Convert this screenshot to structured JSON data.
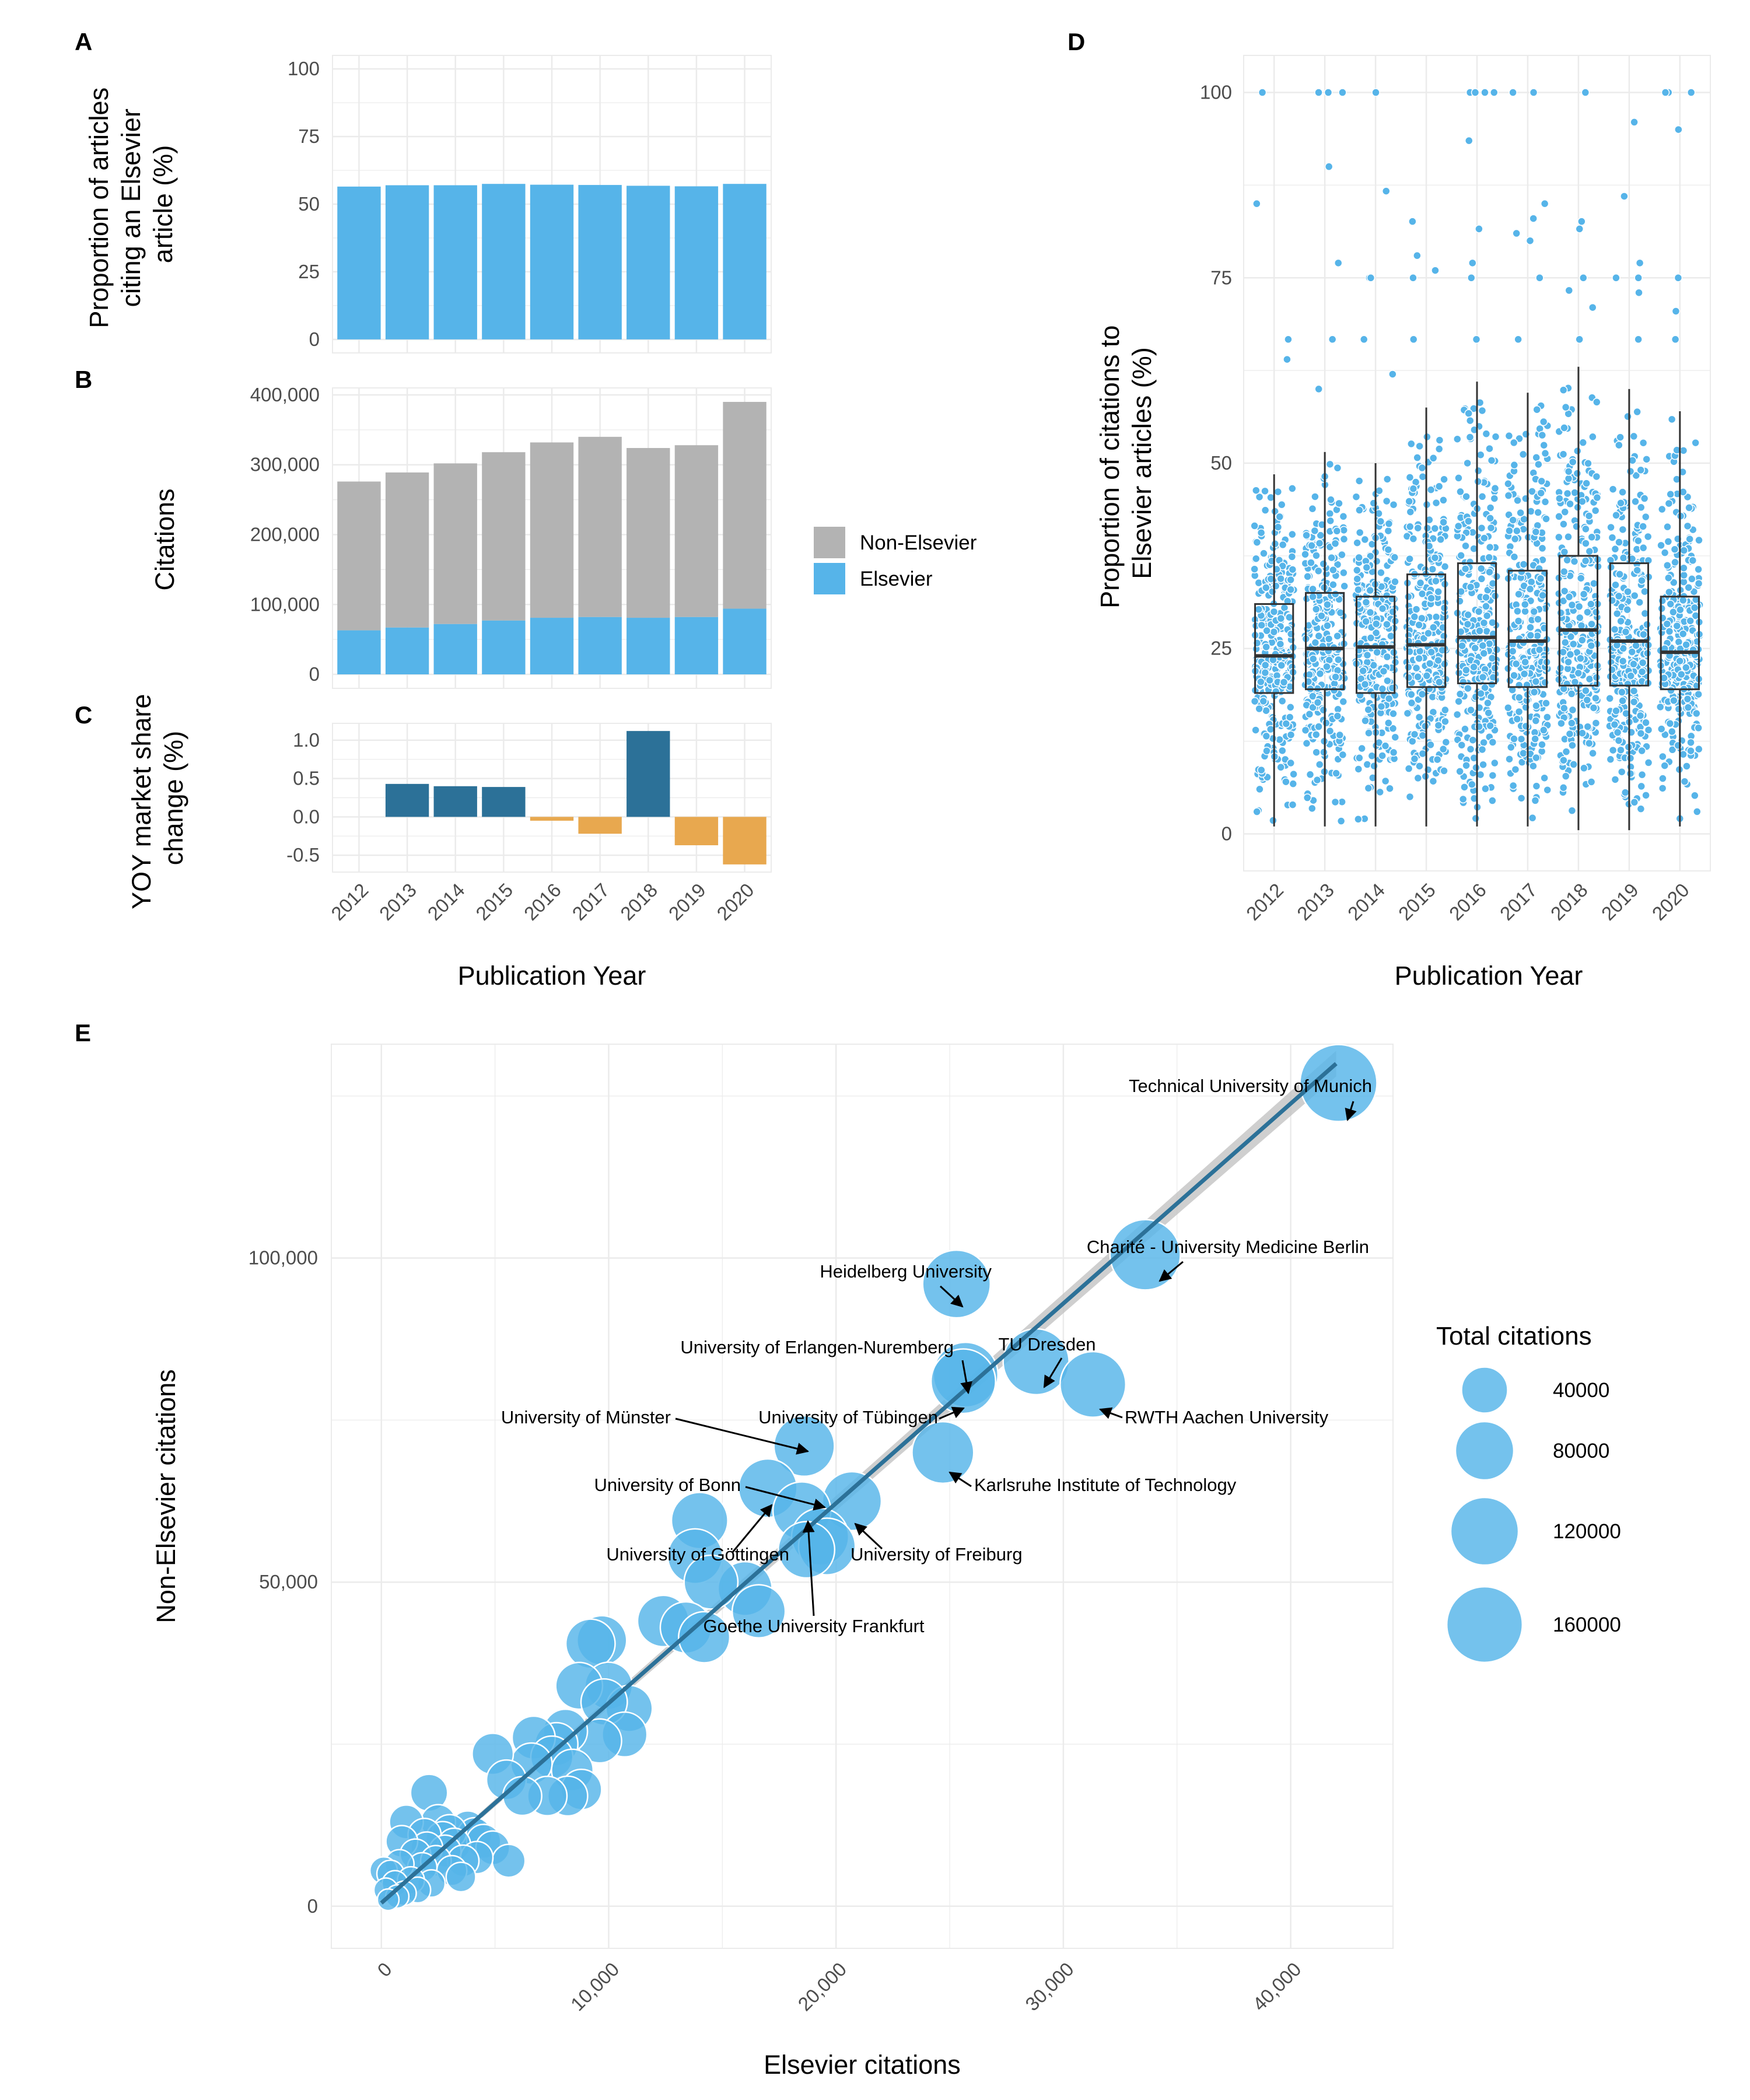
{
  "panel_letters": {
    "a": "A",
    "b": "B",
    "c": "C",
    "d": "D",
    "e": "E"
  },
  "colors": {
    "elsevier": "#56B4E9",
    "non_elsevier": "#B3B3B3",
    "positive_change": "#2C7198",
    "negative_change": "#E8A84F",
    "regression_line": "#2C7198",
    "confidence_band": "#BFBFBF",
    "grid": "#EBEBEB"
  },
  "chart_data": [
    {
      "id": "A",
      "type": "bar",
      "categories": [
        "2012",
        "2013",
        "2014",
        "2015",
        "2016",
        "2017",
        "2018",
        "2019",
        "2020"
      ],
      "values": [
        56.5,
        57.0,
        57.0,
        57.5,
        57.2,
        57.1,
        56.8,
        56.6,
        57.5
      ],
      "ylim": [
        0,
        100
      ],
      "yticks": [
        0,
        25,
        50,
        75,
        100
      ],
      "ytick_labels": [
        "0",
        "25",
        "50",
        "75",
        "100"
      ],
      "ylabel_lines": [
        "Proportion of articles",
        "citing an Elsevier",
        "article (%)"
      ],
      "grid": true
    },
    {
      "id": "B",
      "type": "bar",
      "stacked": true,
      "categories": [
        "2012",
        "2013",
        "2014",
        "2015",
        "2016",
        "2017",
        "2018",
        "2019",
        "2020"
      ],
      "series": [
        {
          "name": "Elsevier",
          "values": [
            63000,
            67000,
            72000,
            77000,
            81000,
            82000,
            81000,
            82000,
            94000
          ]
        },
        {
          "name": "Non-Elsevier",
          "values": [
            213000,
            222000,
            230000,
            241000,
            251000,
            258000,
            243000,
            246000,
            296000
          ]
        }
      ],
      "ylim": [
        0,
        400000
      ],
      "yticks": [
        0,
        100000,
        200000,
        300000,
        400000
      ],
      "ytick_labels": [
        "0",
        "100,000",
        "200,000",
        "300,000",
        "400,000"
      ],
      "ylabel": "Citations",
      "legend": {
        "position": "right",
        "entries": [
          "Non-Elsevier",
          "Elsevier"
        ]
      },
      "grid": true
    },
    {
      "id": "C",
      "type": "bar",
      "categories": [
        "2012",
        "2013",
        "2014",
        "2015",
        "2016",
        "2017",
        "2018",
        "2019",
        "2020"
      ],
      "values": [
        null,
        0.43,
        0.4,
        0.39,
        -0.05,
        -0.22,
        1.12,
        -0.37,
        -0.62
      ],
      "ylim": [
        -0.75,
        1.25
      ],
      "yticks": [
        -0.5,
        0.0,
        0.5,
        1.0
      ],
      "ytick_labels": [
        "-0.5",
        "0.0",
        "0.5",
        "1.0"
      ],
      "xtick_labels": [
        "2012",
        "2013",
        "2014",
        "2015",
        "2016",
        "2017",
        "2018",
        "2019",
        "2020"
      ],
      "ylabel_lines": [
        "YOY market share",
        "change (%)"
      ],
      "xlabel": "Publication Year",
      "grid": true
    },
    {
      "id": "D",
      "type": "box",
      "categories": [
        "2012",
        "2013",
        "2014",
        "2015",
        "2016",
        "2017",
        "2018",
        "2019",
        "2020"
      ],
      "boxes": [
        {
          "year": "2012",
          "q1": 19.0,
          "median": 24.0,
          "q3": 31.0,
          "whisker_low": 1.0,
          "whisker_high": 48.5
        },
        {
          "year": "2013",
          "q1": 19.5,
          "median": 25.0,
          "q3": 32.5,
          "whisker_low": 1.0,
          "whisker_high": 51.5
        },
        {
          "year": "2014",
          "q1": 19.0,
          "median": 25.2,
          "q3": 32.0,
          "whisker_low": 1.0,
          "whisker_high": 50.0
        },
        {
          "year": "2015",
          "q1": 19.8,
          "median": 25.5,
          "q3": 35.0,
          "whisker_low": 1.0,
          "whisker_high": 57.5
        },
        {
          "year": "2016",
          "q1": 20.3,
          "median": 26.5,
          "q3": 36.5,
          "whisker_low": 1.0,
          "whisker_high": 61.0
        },
        {
          "year": "2017",
          "q1": 19.8,
          "median": 26.0,
          "q3": 35.5,
          "whisker_low": 1.0,
          "whisker_high": 59.5
        },
        {
          "year": "2018",
          "q1": 20.0,
          "median": 27.5,
          "q3": 37.5,
          "whisker_low": 0.5,
          "whisker_high": 63.0
        },
        {
          "year": "2019",
          "q1": 20.0,
          "median": 26.0,
          "q3": 36.5,
          "whisker_low": 0.5,
          "whisker_high": 60.0
        },
        {
          "year": "2020",
          "q1": 19.5,
          "median": 24.5,
          "q3": 32.0,
          "whisker_low": 1.0,
          "whisker_high": 57.0
        }
      ],
      "jitter_points_per_year": 300,
      "outliers": [
        {
          "year": "2012",
          "values": [
            100,
            85,
            66.7,
            64
          ]
        },
        {
          "year": "2013",
          "values": [
            100,
            100,
            100,
            90,
            77,
            66.7,
            60
          ]
        },
        {
          "year": "2014",
          "values": [
            100,
            86.7,
            75,
            75,
            66.7,
            62
          ]
        },
        {
          "year": "2015",
          "values": [
            82.6,
            78,
            76,
            75,
            66.7
          ]
        },
        {
          "year": "2016",
          "values": [
            100,
            100,
            100,
            100,
            93.5,
            81.6,
            77,
            75,
            66.7
          ]
        },
        {
          "year": "2017",
          "values": [
            100,
            100,
            85,
            83,
            81,
            80,
            75,
            66.7
          ]
        },
        {
          "year": "2018",
          "values": [
            100,
            82.6,
            81.6,
            75,
            73.3,
            71,
            66.7
          ]
        },
        {
          "year": "2019",
          "values": [
            96,
            86,
            77,
            75,
            75,
            73,
            66.7
          ]
        },
        {
          "year": "2020",
          "values": [
            100,
            100,
            100,
            95,
            75,
            70.5,
            66.7
          ]
        }
      ],
      "ylim": [
        -5,
        105
      ],
      "yticks": [
        0,
        25,
        50,
        75,
        100
      ],
      "ytick_labels": [
        "0",
        "25",
        "50",
        "75",
        "100"
      ],
      "ylabel_lines": [
        "Proportion of citations to",
        "Elsevier articles (%)"
      ],
      "xlabel": "Publication Year",
      "grid": true
    },
    {
      "id": "E",
      "type": "scatter",
      "bubble": true,
      "xlim": [
        -2200,
        44500
      ],
      "ylim": [
        -6500,
        133000
      ],
      "xticks": [
        0,
        10000,
        20000,
        30000,
        40000
      ],
      "xtick_labels": [
        "0",
        "10,000",
        "20,000",
        "30,000",
        "40,000"
      ],
      "yticks": [
        0,
        50000,
        100000
      ],
      "ytick_labels": [
        "0",
        "50,000",
        "100,000"
      ],
      "xlabel": "Elsevier citations",
      "ylabel": "Non-Elsevier citations",
      "regression_line": {
        "from": [
          0,
          500
        ],
        "to": [
          42000,
          130000
        ]
      },
      "size_legend": {
        "title": "Total citations",
        "values": [
          40000,
          80000,
          120000,
          160000
        ],
        "labels": [
          "40000",
          "80000",
          "120000",
          "160000"
        ]
      },
      "labeled_points": [
        {
          "label": "Technical University of Munich",
          "x": 42100,
          "y": 127000,
          "total": 169100
        },
        {
          "label": "Charité - University Medicine Berlin",
          "x": 33600,
          "y": 100500,
          "total": 134100
        },
        {
          "label": "Heidelberg University",
          "x": 25300,
          "y": 96000,
          "total": 121300
        },
        {
          "label": "University of Erlangen-Nuremberg",
          "x": 25700,
          "y": 82000,
          "total": 107700
        },
        {
          "label": "TU Dresden",
          "x": 28800,
          "y": 84000,
          "total": 112800
        },
        {
          "label": "RWTH Aachen University",
          "x": 31300,
          "y": 80500,
          "total": 111800
        },
        {
          "label": "University of Tübingen",
          "x": 25600,
          "y": 81000,
          "total": 106600
        },
        {
          "label": "University of Münster",
          "x": 18600,
          "y": 71000,
          "total": 89600
        },
        {
          "label": "Karlsruhe Institute of Technology",
          "x": 24700,
          "y": 70000,
          "total": 94700
        },
        {
          "label": "University of Bonn",
          "x": 17000,
          "y": 64500,
          "total": 81500
        },
        {
          "label": "University of Göttingen",
          "x": 18500,
          "y": 61000,
          "total": 79500
        },
        {
          "label": "University of Freiburg",
          "x": 20700,
          "y": 62500,
          "total": 83200
        },
        {
          "label": "Goethe University Frankfurt",
          "x": 19300,
          "y": 57000,
          "total": 76300
        }
      ],
      "other_points": [
        {
          "x": 19600,
          "y": 55500,
          "total": 75000
        },
        {
          "x": 18700,
          "y": 55000,
          "total": 73700
        },
        {
          "x": 14000,
          "y": 59500,
          "total": 73500
        },
        {
          "x": 14500,
          "y": 50000,
          "total": 64500
        },
        {
          "x": 16600,
          "y": 45500,
          "total": 62000
        },
        {
          "x": 16000,
          "y": 49000,
          "total": 65000
        },
        {
          "x": 13800,
          "y": 54000,
          "total": 67800
        },
        {
          "x": 12400,
          "y": 44000,
          "total": 56400
        },
        {
          "x": 14200,
          "y": 41500,
          "total": 55700
        },
        {
          "x": 13400,
          "y": 43000,
          "total": 56400
        },
        {
          "x": 9200,
          "y": 40500,
          "total": 49700
        },
        {
          "x": 9700,
          "y": 41000,
          "total": 50700
        },
        {
          "x": 8700,
          "y": 34000,
          "total": 42700
        },
        {
          "x": 9800,
          "y": 31500,
          "total": 41300
        },
        {
          "x": 10000,
          "y": 34000,
          "total": 44000
        },
        {
          "x": 10900,
          "y": 30500,
          "total": 41400
        },
        {
          "x": 10700,
          "y": 26500,
          "total": 37200
        },
        {
          "x": 9600,
          "y": 25500,
          "total": 35100
        },
        {
          "x": 7700,
          "y": 25000,
          "total": 32700
        },
        {
          "x": 8100,
          "y": 27000,
          "total": 35100
        },
        {
          "x": 6700,
          "y": 26000,
          "total": 32700
        },
        {
          "x": 7500,
          "y": 23000,
          "total": 30500
        },
        {
          "x": 4900,
          "y": 23500,
          "total": 28400
        },
        {
          "x": 5500,
          "y": 19500,
          "total": 25000
        },
        {
          "x": 6200,
          "y": 17000,
          "total": 23200
        },
        {
          "x": 7300,
          "y": 17000,
          "total": 24300
        },
        {
          "x": 8200,
          "y": 17000,
          "total": 25200
        },
        {
          "x": 8800,
          "y": 18000,
          "total": 26800
        },
        {
          "x": 8400,
          "y": 21000,
          "total": 29400
        },
        {
          "x": 6600,
          "y": 22000,
          "total": 28600
        },
        {
          "x": 2100,
          "y": 17500,
          "total": 19600
        },
        {
          "x": 2500,
          "y": 13000,
          "total": 15500
        },
        {
          "x": 1100,
          "y": 13000,
          "total": 14100
        },
        {
          "x": 3000,
          "y": 11500,
          "total": 14500
        },
        {
          "x": 3800,
          "y": 12000,
          "total": 15800
        },
        {
          "x": 4500,
          "y": 10000,
          "total": 14500
        },
        {
          "x": 3200,
          "y": 9500,
          "total": 12700
        },
        {
          "x": 2700,
          "y": 10500,
          "total": 13200
        },
        {
          "x": 5600,
          "y": 7000,
          "total": 12600
        },
        {
          "x": 4900,
          "y": 9000,
          "total": 13900
        },
        {
          "x": 4200,
          "y": 7500,
          "total": 11700
        },
        {
          "x": 3600,
          "y": 7000,
          "total": 10600
        },
        {
          "x": 3100,
          "y": 5500,
          "total": 8600
        },
        {
          "x": 3500,
          "y": 4500,
          "total": 8000
        },
        {
          "x": 2400,
          "y": 7000,
          "total": 9400
        },
        {
          "x": 2000,
          "y": 9000,
          "total": 11000
        },
        {
          "x": 1800,
          "y": 6000,
          "total": 7800
        },
        {
          "x": 1500,
          "y": 8000,
          "total": 9500
        },
        {
          "x": 900,
          "y": 10000,
          "total": 10900
        },
        {
          "x": 1300,
          "y": 4000,
          "total": 5300
        },
        {
          "x": 800,
          "y": 6500,
          "total": 7300
        },
        {
          "x": 600,
          "y": 3500,
          "total": 4100
        },
        {
          "x": 400,
          "y": 5000,
          "total": 5400
        },
        {
          "x": 200,
          "y": 2500,
          "total": 2700
        },
        {
          "x": 100,
          "y": 5500,
          "total": 5600
        },
        {
          "x": 700,
          "y": 1500,
          "total": 2200
        },
        {
          "x": 1000,
          "y": 2000,
          "total": 3000
        },
        {
          "x": 300,
          "y": 1000,
          "total": 1300
        },
        {
          "x": 1600,
          "y": 2500,
          "total": 4100
        },
        {
          "x": 2200,
          "y": 3500,
          "total": 5700
        },
        {
          "x": 1900,
          "y": 11000,
          "total": 12900
        },
        {
          "x": 2800,
          "y": 8500,
          "total": 11300
        },
        {
          "x": 4100,
          "y": 11000,
          "total": 15100
        }
      ]
    }
  ]
}
